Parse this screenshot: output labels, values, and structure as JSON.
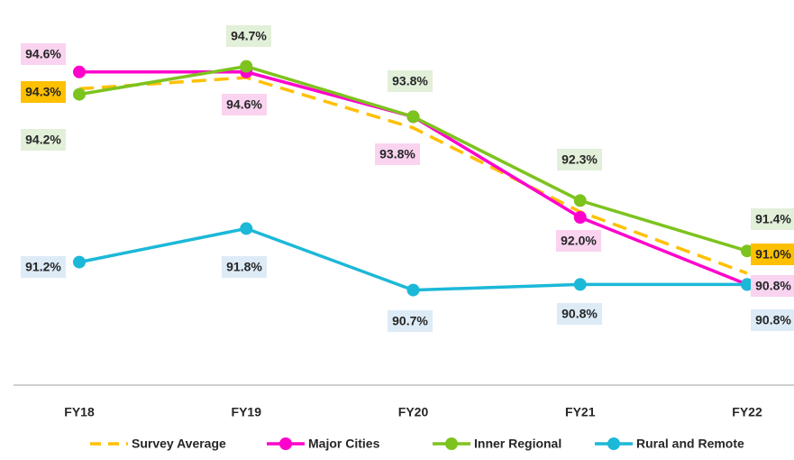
{
  "chart_data": {
    "type": "line",
    "categories": [
      "FY18",
      "FY19",
      "FY20",
      "FY21",
      "FY22"
    ],
    "ylim": [
      89,
      96
    ],
    "legend": "bottom",
    "series": [
      {
        "name": "Survey Average",
        "color": "#FFC000",
        "dashed": true,
        "marker": false,
        "label_bg": "#FFC000",
        "values": [
          94.3,
          94.5,
          93.6,
          92.1,
          91.0
        ],
        "value_labels": [
          "94.3%",
          null,
          null,
          null,
          "91.0%"
        ]
      },
      {
        "name": "Major Cities",
        "color": "#FF00CC",
        "dashed": false,
        "marker": true,
        "label_bg": "#F9D3F0",
        "values": [
          94.6,
          94.6,
          93.8,
          92.0,
          90.8
        ],
        "value_labels": [
          "94.6%",
          "94.6%",
          "93.8%",
          "92.0%",
          "90.8%"
        ]
      },
      {
        "name": "Inner Regional",
        "color": "#7DC31E",
        "dashed": false,
        "marker": true,
        "label_bg": "#E2EFD9",
        "values": [
          94.2,
          94.7,
          93.8,
          92.3,
          91.4
        ],
        "value_labels": [
          "94.2%",
          "94.7%",
          "93.8%",
          "92.3%",
          "91.4%"
        ]
      },
      {
        "name": "Rural and Remote",
        "color": "#1CB8D8",
        "dashed": false,
        "marker": true,
        "label_bg": "#DDEBF7",
        "values": [
          91.2,
          91.8,
          90.7,
          90.8,
          90.8
        ],
        "value_labels": [
          "91.2%",
          "91.8%",
          "90.7%",
          "90.8%",
          "90.8%"
        ]
      }
    ]
  }
}
